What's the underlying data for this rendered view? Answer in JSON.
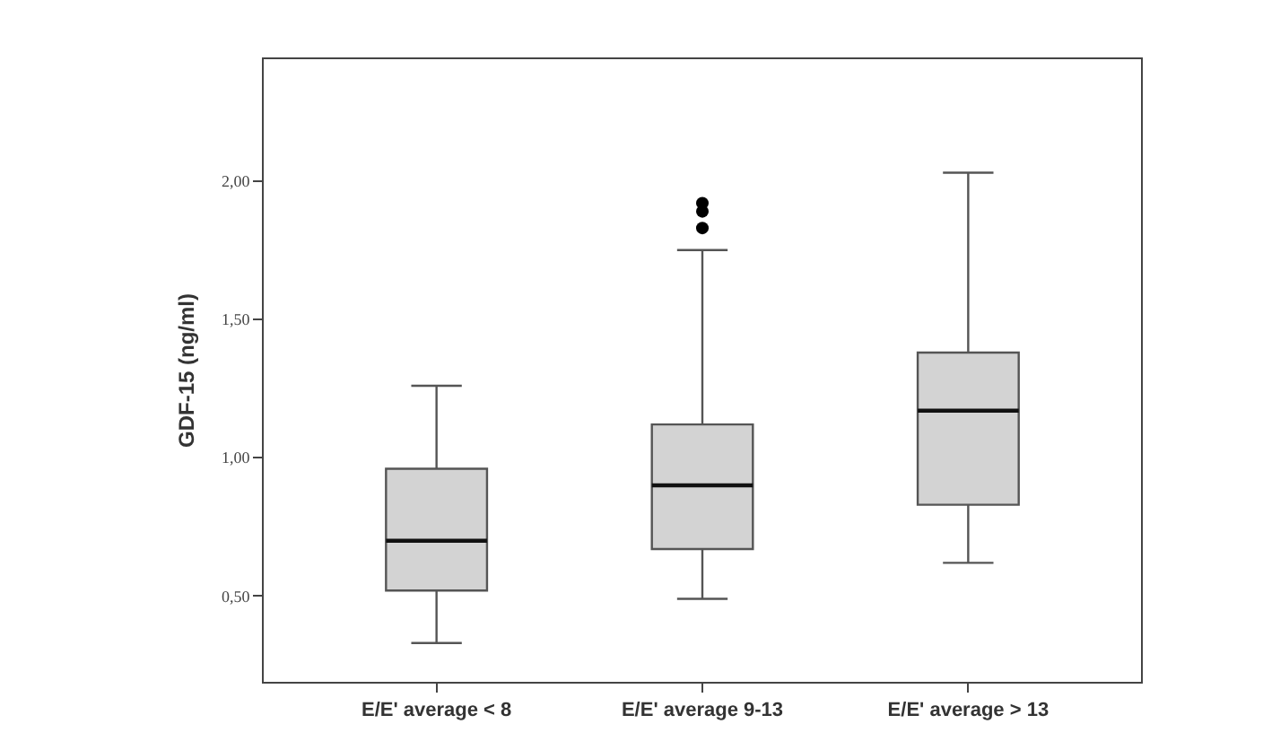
{
  "chart_data": {
    "type": "box",
    "ylabel": "GDF-15 (ng/ml)",
    "categories": [
      "E/E' average < 8",
      "E/E' average 9-13",
      "E/E' average > 13"
    ],
    "boxes": [
      {
        "low": 0.33,
        "q1": 0.52,
        "median": 0.7,
        "q3": 0.96,
        "high": 1.26
      },
      {
        "low": 0.49,
        "q1": 0.67,
        "median": 0.9,
        "q3": 1.12,
        "high": 1.75,
        "outliers": [
          1.83,
          1.89,
          1.92
        ]
      },
      {
        "low": 0.62,
        "q1": 0.83,
        "median": 1.17,
        "q3": 1.38,
        "high": 2.03
      }
    ],
    "color": "#d3d3d3",
    "ylim": [
      0.19,
      2.44
    ],
    "yticks": [
      {
        "value": 0.5,
        "label": "0,50"
      },
      {
        "value": 1.0,
        "label": "1,00"
      },
      {
        "value": 1.5,
        "label": "1,50"
      },
      {
        "value": 2.0,
        "label": "2,00"
      }
    ],
    "marker": "circle"
  }
}
